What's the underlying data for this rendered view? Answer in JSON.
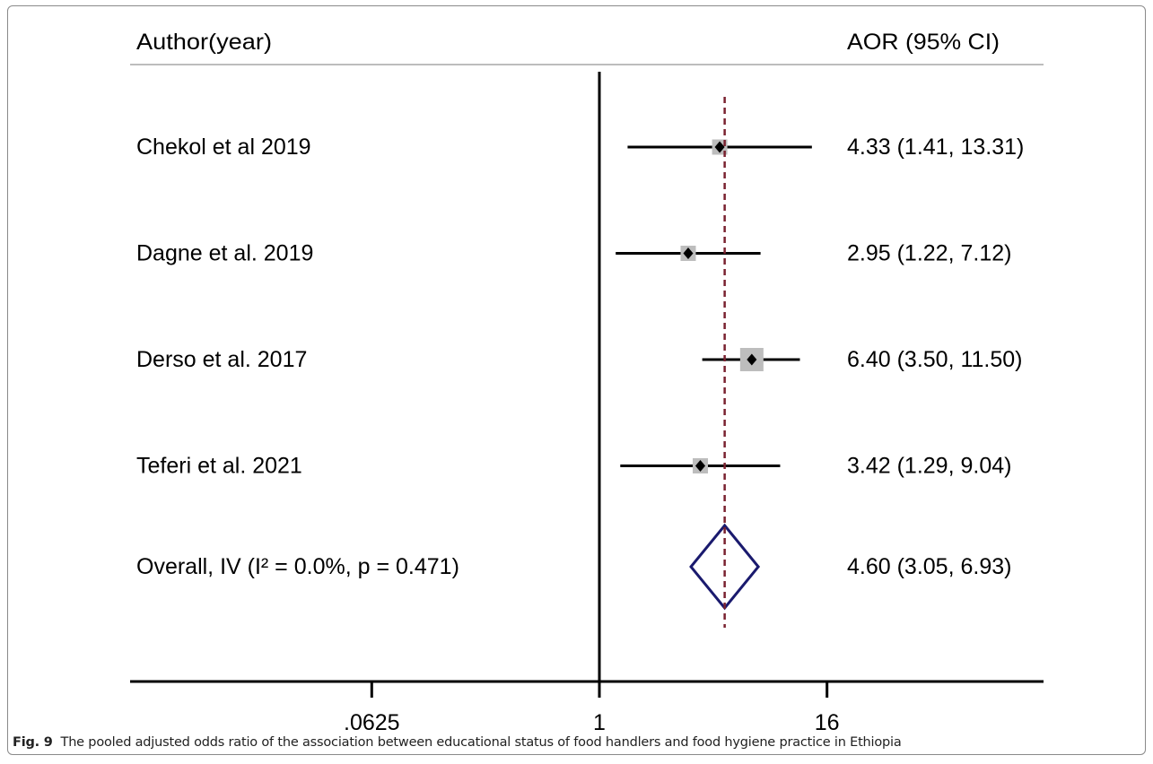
{
  "caption": {
    "label": "Fig. 9",
    "text": "The pooled adjusted odds ratio of the association between educational status of food handlers and food hygiene practice in Ethiopia"
  },
  "chart_data": {
    "type": "forest",
    "left_header": "Author(year)",
    "right_header": "AOR (95% CI)",
    "x_scale": "log",
    "xlim": [
      0.0625,
      16
    ],
    "x_ticks": [
      0.0625,
      1,
      16
    ],
    "x_tick_labels": [
      ".0625",
      "1",
      "16"
    ],
    "reference_line": 1,
    "pooled_line": 4.6,
    "studies": [
      {
        "label": "Chekol et al 2019",
        "est": 4.33,
        "lo": 1.41,
        "hi": 13.31,
        "ci_text": "4.33 (1.41, 13.31)"
      },
      {
        "label": "Dagne et al. 2019",
        "est": 2.95,
        "lo": 1.22,
        "hi": 7.12,
        "ci_text": "2.95 (1.22, 7.12)"
      },
      {
        "label": "Derso et al. 2017",
        "est": 6.4,
        "lo": 3.5,
        "hi": 11.5,
        "ci_text": "6.40 (3.50, 11.50)"
      },
      {
        "label": "Teferi et al. 2021",
        "est": 3.42,
        "lo": 1.29,
        "hi": 9.04,
        "ci_text": "3.42 (1.29, 9.04)"
      }
    ],
    "overall": {
      "label": "Overall, IV (I² = 0.0%, p = 0.471)",
      "est": 4.6,
      "lo": 3.05,
      "hi": 6.93,
      "ci_text": "4.60 (3.05, 6.93)"
    },
    "colors": {
      "text": "#000000",
      "ci_line": "#000000",
      "box": "#bdbdbd",
      "pooled_line": "#7a2230",
      "diamond": "#1a1a6e",
      "header_rule": "#bdbdbd"
    }
  }
}
